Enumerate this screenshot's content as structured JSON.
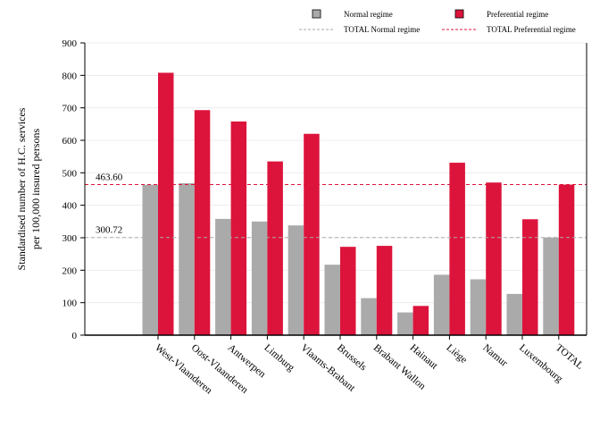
{
  "chart_data": {
    "type": "bar",
    "title": "",
    "xlabel": "",
    "ylabel_line1": "Standardised number of H.C. services",
    "ylabel_line2": "per 100,000 insured persons",
    "ylim": [
      0,
      900
    ],
    "yticks": [
      0,
      100,
      200,
      300,
      400,
      500,
      600,
      700,
      800,
      900
    ],
    "grid": true,
    "legend_position": "top-right",
    "categories": [
      "West-Vlaanderen",
      "Oost-Vlaanderen",
      "Antwerpen",
      "Limburg",
      "Vlaams-Brabant",
      "Brussels",
      "Brabant Wallon",
      "Hainaut",
      "Liège",
      "Namur",
      "Luxembourg",
      "TOTAL"
    ],
    "series": [
      {
        "name": "Normal regime",
        "color": "#aaaaaa",
        "values": [
          463,
          468,
          358,
          350,
          338,
          217,
          114,
          70,
          186,
          172,
          127,
          300.72
        ]
      },
      {
        "name": "Preferential regime",
        "color": "#dc143c",
        "values": [
          808,
          693,
          658,
          535,
          620,
          272,
          275,
          90,
          531,
          470,
          357,
          463.6
        ]
      }
    ],
    "reference_lines": [
      {
        "name": "TOTAL Normal regime",
        "value": 300.72,
        "label": "300.72",
        "color": "#aaaaaa"
      },
      {
        "name": "TOTAL Preferential regime",
        "value": 463.6,
        "label": "463.60",
        "color": "#dc143c"
      }
    ]
  }
}
